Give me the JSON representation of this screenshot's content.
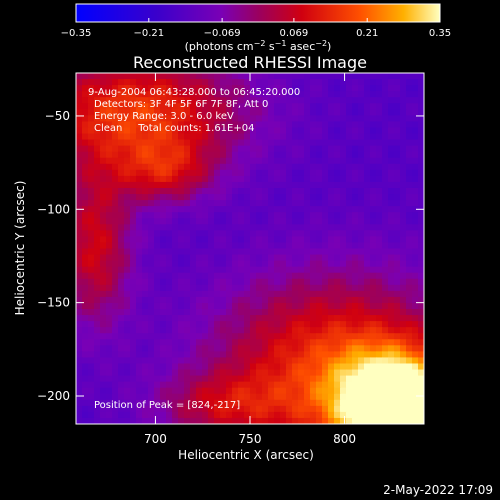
{
  "chart_data": {
    "type": "heatmap",
    "title": "Reconstructed RHESSI Image",
    "xlabel": "Heliocentric X (arcsec)",
    "ylabel": "Heliocentric Y (arcsec)",
    "xlim": [
      658,
      842
    ],
    "ylim": [
      -215,
      -27
    ],
    "x_ticks": [
      700,
      750,
      800
    ],
    "y_ticks": [
      -50,
      -100,
      -150,
      -200
    ],
    "colorbar": {
      "min": -0.35,
      "max": 0.35,
      "ticks": [
        -0.35,
        -0.21,
        -0.069,
        0.069,
        0.21,
        0.35
      ],
      "tick_labels": [
        "−0.35",
        "−0.21",
        "−0.069",
        "0.069",
        "0.21",
        "0.35"
      ],
      "unit_prefix": "(photons cm",
      "unit_exp1": "−2",
      "unit_mid": " s",
      "unit_exp2": "−1",
      "unit_mid2": " asec",
      "unit_exp3": "−2",
      "unit_suffix": ")"
    },
    "annotations": [
      "9-Aug-2004 06:43:28.000 to 06:45:20.000",
      "Detectors: 3F 4F 5F 6F 7F 8F, Att 0",
      "Energy Range: 3.0 - 6.0 keV",
      "Clean     Total counts: 1.61E+04"
    ],
    "peak_label": "Position of Peak = [824,-217]",
    "peak": [
      824,
      -217
    ],
    "sources": [
      {
        "x": 828,
        "y": -207,
        "amp": 0.55,
        "sx": 22,
        "sy": 20
      },
      {
        "x": 795,
        "y": -185,
        "amp": 0.3,
        "sx": 45,
        "sy": 35
      },
      {
        "x": 690,
        "y": -48,
        "amp": 0.3,
        "sx": 40,
        "sy": 22
      },
      {
        "x": 705,
        "y": -80,
        "amp": 0.18,
        "sx": 18,
        "sy": 12
      },
      {
        "x": 668,
        "y": -120,
        "amp": 0.22,
        "sx": 14,
        "sy": 30
      },
      {
        "x": 735,
        "y": -205,
        "amp": 0.14,
        "sx": 25,
        "sy": 12
      }
    ],
    "background": -0.14
  },
  "footer": {
    "timestamp": "2-May-2022 17:09"
  }
}
